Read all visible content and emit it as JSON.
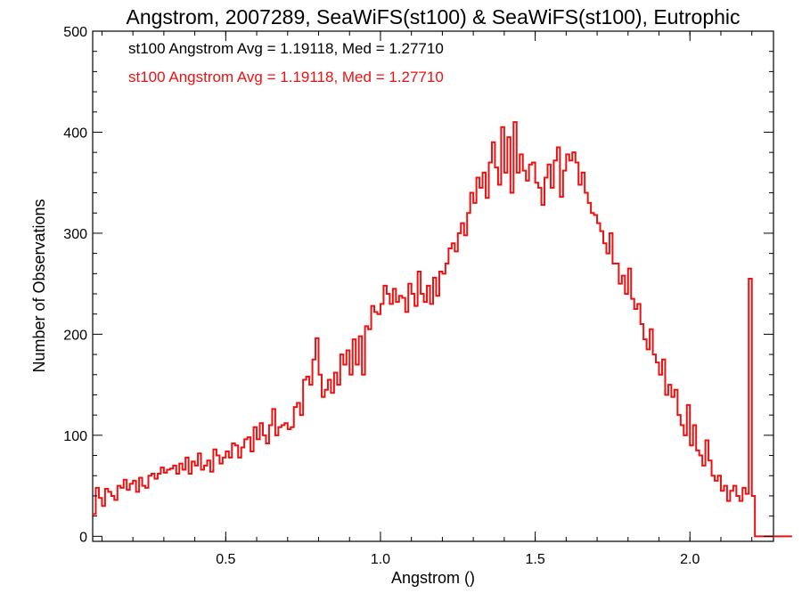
{
  "chart_data": {
    "type": "histogram",
    "title": "Angstrom, 2007289, SeaWiFS(st100) & SeaWiFS(st100), Eutrophic",
    "xlabel": "Angstrom ()",
    "ylabel": "Number of Observations",
    "xlim": [
      0.07,
      2.27
    ],
    "ylim": [
      -5,
      500
    ],
    "x_ticks": [
      0.5,
      1.0,
      1.5,
      2.0
    ],
    "x_tick_labels": [
      "0.5",
      "1.0",
      "1.5",
      "2.0"
    ],
    "y_ticks": [
      0,
      100,
      200,
      300,
      400,
      500
    ],
    "y_tick_labels": [
      "0",
      "100",
      "200",
      "300",
      "400",
      "500"
    ],
    "grid": false,
    "legend_position": "top-left",
    "annotations": [
      {
        "text": "st100 Angstrom Avg = 1.19118, Med = 1.27710",
        "color": "#000000"
      },
      {
        "text": "st100 Angstrom Avg = 1.19118, Med = 1.27710",
        "color": "#ee1111"
      }
    ],
    "series": [
      {
        "color": "#ee1111",
        "bin_start": 0.07,
        "bin_width": 0.01,
        "values": [
          22,
          48,
          38,
          30,
          47,
          44,
          40,
          36,
          50,
          48,
          56,
          46,
          52,
          55,
          44,
          58,
          50,
          48,
          60,
          62,
          57,
          62,
          68,
          63,
          66,
          67,
          70,
          62,
          72,
          66,
          78,
          62,
          74,
          70,
          82,
          66,
          70,
          75,
          64,
          86,
          80,
          72,
          78,
          84,
          78,
          92,
          90,
          78,
          88,
          96,
          98,
          84,
          108,
          96,
          112,
          100,
          92,
          110,
          126,
          100,
          108,
          110,
          112,
          106,
          108,
          128,
          132,
          120,
          155,
          158,
          150,
          175,
          196,
          160,
          138,
          145,
          155,
          142,
          162,
          150,
          180,
          170,
          184,
          160,
          195,
          170,
          198,
          160,
          208,
          205,
          228,
          222,
          220,
          230,
          248,
          240,
          230,
          245,
          232,
          238,
          236,
          222,
          250,
          240,
          228,
          262,
          240,
          232,
          248,
          230,
          256,
          238,
          262,
          260,
          270,
          285,
          290,
          282,
          300,
          310,
          298,
          320,
          340,
          330,
          355,
          345,
          360,
          335,
          370,
          390,
          365,
          348,
          405,
          360,
          395,
          340,
          410,
          360,
          378,
          362,
          352,
          368,
          370,
          350,
          345,
          328,
          355,
          368,
          345,
          372,
          385,
          336,
          362,
          378,
          372,
          380,
          370,
          348,
          360,
          340,
          330,
          320,
          318,
          310,
          302,
          290,
          280,
          300,
          270,
          270,
          250,
          258,
          240,
          265,
          235,
          225,
          230,
          210,
          195,
          185,
          205,
          180,
          172,
          160,
          175,
          140,
          150,
          138,
          145,
          120,
          110,
          100,
          130,
          90,
          110,
          85,
          80,
          70,
          95,
          75,
          60,
          55,
          60,
          45,
          50,
          35,
          45,
          50,
          40,
          35,
          48,
          42,
          255,
          40,
          0,
          0,
          0,
          0,
          0,
          0,
          0,
          0,
          0,
          0,
          0,
          0
        ]
      }
    ]
  }
}
